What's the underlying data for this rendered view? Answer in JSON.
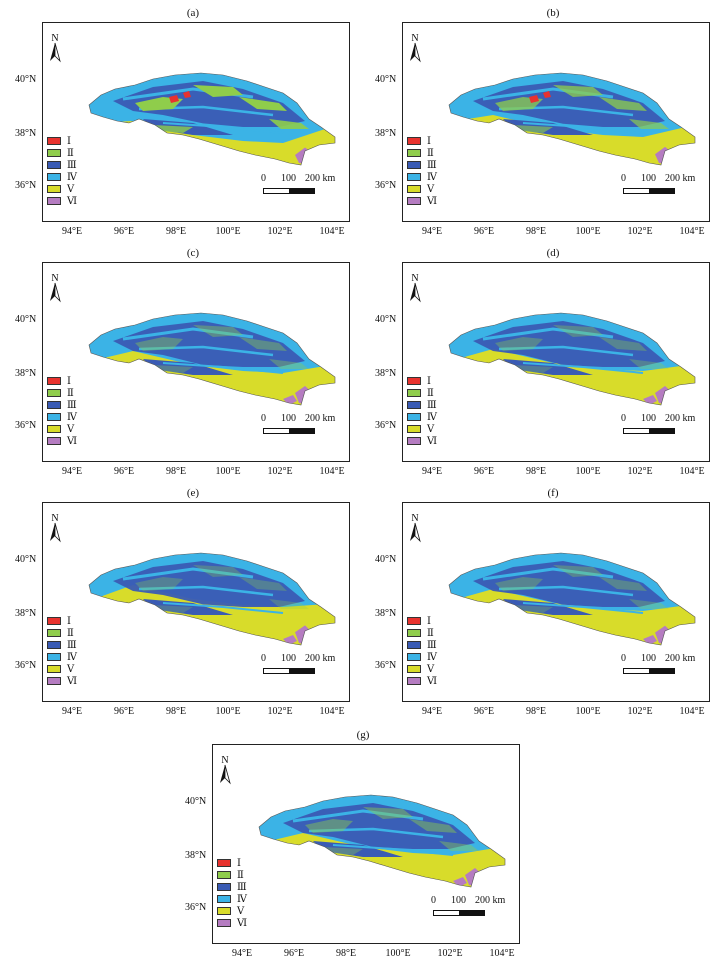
{
  "figure": {
    "panels": [
      {
        "label": "(a)"
      },
      {
        "label": "(b)"
      },
      {
        "label": "(c)"
      },
      {
        "label": "(d)"
      },
      {
        "label": "(e)"
      },
      {
        "label": "(f)"
      },
      {
        "label": "(g)"
      }
    ],
    "legend": [
      {
        "label": "Ⅰ",
        "color": "#e8322e"
      },
      {
        "label": "Ⅱ",
        "color": "#8fcd4b"
      },
      {
        "label": "Ⅲ",
        "color": "#3a5bb4"
      },
      {
        "label": "Ⅳ",
        "color": "#3bb3e6"
      },
      {
        "label": "Ⅴ",
        "color": "#d8dc2a"
      },
      {
        "label": "Ⅵ",
        "color": "#b57cc1"
      }
    ],
    "north_label": "N",
    "scale_bar": {
      "ticks": [
        "0",
        "100",
        "200 km"
      ]
    },
    "lat_labels": [
      "40°N",
      "38°N",
      "36°N"
    ],
    "lon_labels": [
      "94°E",
      "96°E",
      "98°E",
      "100°E",
      "102°E",
      "104°E"
    ]
  }
}
